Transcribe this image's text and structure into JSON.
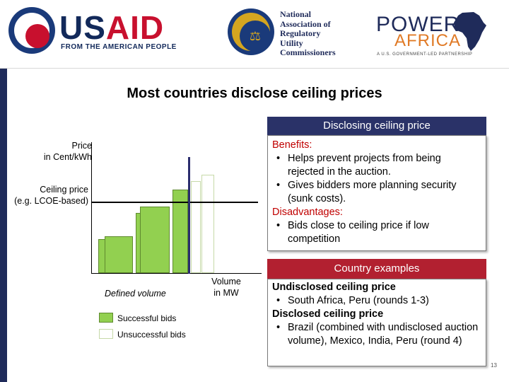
{
  "logos": {
    "usaid": {
      "word_a": "US",
      "word_b": "AID",
      "sub": "FROM THE AMERICAN PEOPLE"
    },
    "naruc": {
      "lines": [
        "National",
        "Association of",
        "Regulatory",
        "Utility",
        "Commissioners"
      ]
    },
    "power_africa": {
      "line1": "POWER",
      "line2": "AFRICA",
      "tag": "A U.S. GOVERNMENT-LED PARTNERSHIP"
    }
  },
  "title": "Most countries disclose ceiling prices",
  "chart": {
    "price_label": "Price\nin Cent/kWh",
    "ceiling_label": "Ceiling price\n(e.g. LCOE-based)",
    "volume_label": "Volume\nin MW",
    "defined_volume": "Defined volume",
    "legend": {
      "successful": "Successful bids",
      "unsuccessful": "Unsuccessful bids"
    }
  },
  "chart_data": {
    "type": "bar",
    "ceiling_price": "Ceiling price (e.g. LCOE-based)",
    "bars": [
      {
        "status": "successful",
        "height": 0.26
      },
      {
        "status": "successful",
        "height": 0.28
      },
      {
        "status": "successful",
        "height": 0.46
      },
      {
        "status": "successful",
        "height": 0.51
      },
      {
        "status": "successful",
        "height": 0.64
      },
      {
        "status": "unsuccessful",
        "height": 0.7
      },
      {
        "status": "unsuccessful",
        "height": 0.75
      }
    ]
  },
  "panel1": {
    "header": "Disclosing ceiling price",
    "benefits_title": "Benefits:",
    "benefits": [
      "Helps prevent projects from being rejected in the auction.",
      "Gives bidders more planning security (sunk costs)."
    ],
    "disadvantages_title": "Disadvantages:",
    "disadvantages": [
      "Bids close to ceiling price if low competition"
    ]
  },
  "panel2": {
    "header": "Country examples",
    "undisclosed_title": "Undisclosed ceiling price",
    "undisclosed": [
      "South Africa, Peru (rounds 1-3)"
    ],
    "disclosed_title": "Disclosed ceiling price",
    "disclosed": [
      "Brazil (combined with undisclosed auction volume), Mexico, India, Peru (round 4)"
    ]
  },
  "bullet": "•",
  "slide_number": "13",
  "colors": {
    "navy": "#2a3268",
    "red": "#b22030",
    "green": "#92d050",
    "accent_red": "#c00000"
  }
}
